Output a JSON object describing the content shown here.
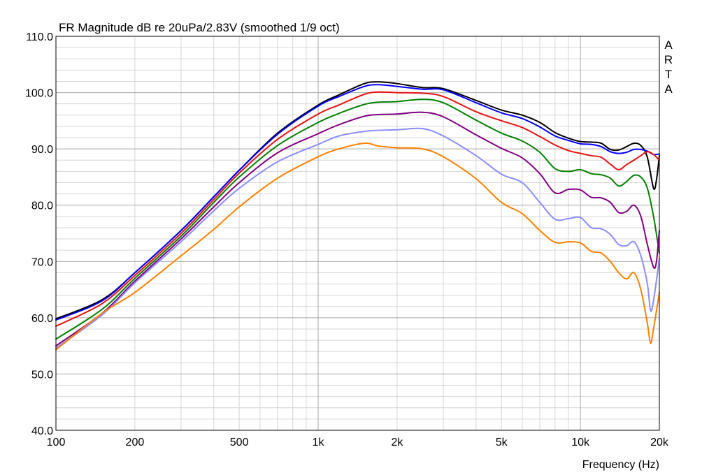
{
  "chart_data": {
    "type": "line",
    "title": "FR Magnitude dB re 20uPa/2.83V (smoothed 1/9 oct)",
    "brand": "ARTA",
    "xlabel": "Frequency (Hz)",
    "ylabel": "",
    "x_scale": "log",
    "xlim": [
      100,
      20000
    ],
    "ylim": [
      40,
      110
    ],
    "grid": true,
    "x_tick_values": [
      100,
      200,
      500,
      1000,
      2000,
      5000,
      10000,
      20000
    ],
    "x_tick_labels": [
      "100",
      "200",
      "500",
      "1k",
      "2k",
      "5k",
      "10k",
      "20k"
    ],
    "y_tick_values": [
      40,
      50,
      60,
      70,
      80,
      90,
      100,
      110
    ],
    "y_tick_labels": [
      "40.0",
      "50.0",
      "60.0",
      "70.0",
      "80.0",
      "90.0",
      "100.0",
      "110.0"
    ],
    "series": [
      {
        "color": "#000000",
        "points": [
          [
            100,
            59.8
          ],
          [
            150,
            63.2
          ],
          [
            200,
            68
          ],
          [
            300,
            75.5
          ],
          [
            400,
            81.5
          ],
          [
            500,
            86.2
          ],
          [
            700,
            92.8
          ],
          [
            1000,
            97.8
          ],
          [
            1200,
            99.6
          ],
          [
            1500,
            101.6
          ],
          [
            1700,
            101.9
          ],
          [
            2000,
            101.6
          ],
          [
            2500,
            100.9
          ],
          [
            3000,
            100.7
          ],
          [
            4000,
            98.6
          ],
          [
            5000,
            96.9
          ],
          [
            6000,
            96
          ],
          [
            7000,
            94.7
          ],
          [
            8000,
            92.9
          ],
          [
            9000,
            91.9
          ],
          [
            10000,
            91.3
          ],
          [
            11000,
            91.2
          ],
          [
            12000,
            91
          ],
          [
            13000,
            89.9
          ],
          [
            14000,
            89.8
          ],
          [
            15000,
            90.4
          ],
          [
            16000,
            91
          ],
          [
            17000,
            90.6
          ],
          [
            18000,
            88.5
          ],
          [
            19000,
            83
          ],
          [
            19500,
            84.5
          ],
          [
            20000,
            88.8
          ]
        ]
      },
      {
        "color": "#0000ff",
        "points": [
          [
            100,
            59.6
          ],
          [
            150,
            63
          ],
          [
            200,
            68
          ],
          [
            300,
            75.5
          ],
          [
            400,
            81.5
          ],
          [
            500,
            86.2
          ],
          [
            700,
            92.6
          ],
          [
            1000,
            97.6
          ],
          [
            1200,
            99.3
          ],
          [
            1500,
            101.1
          ],
          [
            1700,
            101.4
          ],
          [
            2000,
            101.1
          ],
          [
            2500,
            100.6
          ],
          [
            3000,
            100.5
          ],
          [
            4000,
            98.2
          ],
          [
            5000,
            96.4
          ],
          [
            6000,
            95.4
          ],
          [
            7000,
            93.9
          ],
          [
            8000,
            92.3
          ],
          [
            9000,
            91.5
          ],
          [
            10000,
            90.9
          ],
          [
            11000,
            90.8
          ],
          [
            12000,
            90.4
          ],
          [
            13000,
            89.5
          ],
          [
            14000,
            89.2
          ],
          [
            15000,
            89.4
          ],
          [
            16000,
            89.9
          ],
          [
            17000,
            89.9
          ],
          [
            18000,
            89.6
          ],
          [
            19000,
            89
          ],
          [
            20000,
            89.1
          ]
        ]
      },
      {
        "color": "#e81010",
        "points": [
          [
            100,
            58.5
          ],
          [
            150,
            62.5
          ],
          [
            200,
            67.5
          ],
          [
            300,
            75
          ],
          [
            400,
            81
          ],
          [
            500,
            85.7
          ],
          [
            700,
            91.7
          ],
          [
            1000,
            96.2
          ],
          [
            1200,
            97.8
          ],
          [
            1500,
            99.7
          ],
          [
            1700,
            100.1
          ],
          [
            2000,
            100
          ],
          [
            2500,
            99.9
          ],
          [
            3000,
            99.3
          ],
          [
            4000,
            96.6
          ],
          [
            5000,
            95
          ],
          [
            6000,
            93.8
          ],
          [
            7000,
            92.2
          ],
          [
            8000,
            90.7
          ],
          [
            9000,
            89.7
          ],
          [
            10000,
            89.2
          ],
          [
            11000,
            88.8
          ],
          [
            12000,
            88.5
          ],
          [
            13000,
            87.3
          ],
          [
            14000,
            86.3
          ],
          [
            15000,
            87.2
          ],
          [
            16000,
            88
          ],
          [
            17000,
            88.8
          ],
          [
            18000,
            89.5
          ],
          [
            19000,
            89
          ],
          [
            20000,
            88
          ]
        ]
      },
      {
        "color": "#008000",
        "points": [
          [
            100,
            56.2
          ],
          [
            150,
            61.5
          ],
          [
            200,
            67
          ],
          [
            300,
            74.5
          ],
          [
            400,
            80.5
          ],
          [
            500,
            85
          ],
          [
            700,
            90.6
          ],
          [
            1000,
            94.7
          ],
          [
            1200,
            96.3
          ],
          [
            1500,
            97.9
          ],
          [
            1700,
            98.3
          ],
          [
            2000,
            98.4
          ],
          [
            2500,
            98.8
          ],
          [
            3000,
            98.2
          ],
          [
            4000,
            95.1
          ],
          [
            5000,
            92.8
          ],
          [
            6000,
            91.4
          ],
          [
            7000,
            89.4
          ],
          [
            8000,
            86.5
          ],
          [
            9000,
            86
          ],
          [
            10000,
            86.3
          ],
          [
            11000,
            85.6
          ],
          [
            12000,
            85.4
          ],
          [
            13000,
            84.8
          ],
          [
            14000,
            83.4
          ],
          [
            15000,
            84.2
          ],
          [
            16000,
            85.3
          ],
          [
            17000,
            85
          ],
          [
            18000,
            83
          ],
          [
            19000,
            78
          ],
          [
            20000,
            71.5
          ]
        ]
      },
      {
        "color": "#800080",
        "points": [
          [
            100,
            55
          ],
          [
            150,
            60.8
          ],
          [
            200,
            66.5
          ],
          [
            300,
            74
          ],
          [
            400,
            79.7
          ],
          [
            500,
            84
          ],
          [
            700,
            89.3
          ],
          [
            1000,
            92.7
          ],
          [
            1200,
            94.3
          ],
          [
            1500,
            95.8
          ],
          [
            1700,
            96.1
          ],
          [
            2000,
            96.2
          ],
          [
            2500,
            96.5
          ],
          [
            3000,
            95.7
          ],
          [
            4000,
            92.5
          ],
          [
            5000,
            90.1
          ],
          [
            6000,
            88.4
          ],
          [
            7000,
            85.6
          ],
          [
            8000,
            82.2
          ],
          [
            9000,
            82.8
          ],
          [
            10000,
            82.7
          ],
          [
            11000,
            81.4
          ],
          [
            12000,
            81.3
          ],
          [
            13000,
            80.5
          ],
          [
            14000,
            78.7
          ],
          [
            15000,
            78.9
          ],
          [
            16000,
            80
          ],
          [
            17000,
            78
          ],
          [
            18000,
            73
          ],
          [
            19000,
            69
          ],
          [
            19500,
            70
          ],
          [
            20000,
            75.5
          ]
        ]
      },
      {
        "color": "#8c8cff",
        "points": [
          [
            100,
            54.6
          ],
          [
            150,
            60.5
          ],
          [
            200,
            66.2
          ],
          [
            300,
            73.5
          ],
          [
            400,
            79
          ],
          [
            500,
            83
          ],
          [
            700,
            87.7
          ],
          [
            1000,
            90.8
          ],
          [
            1200,
            92.3
          ],
          [
            1500,
            93.1
          ],
          [
            1700,
            93.3
          ],
          [
            2000,
            93.4
          ],
          [
            2500,
            93.6
          ],
          [
            3000,
            92.3
          ],
          [
            4000,
            88.8
          ],
          [
            5000,
            85.5
          ],
          [
            6000,
            84
          ],
          [
            7000,
            80.5
          ],
          [
            8000,
            77.5
          ],
          [
            9000,
            77.6
          ],
          [
            10000,
            77.8
          ],
          [
            11000,
            76
          ],
          [
            12000,
            75.8
          ],
          [
            13000,
            74.8
          ],
          [
            14000,
            73
          ],
          [
            15000,
            72.8
          ],
          [
            16000,
            73.5
          ],
          [
            17000,
            71
          ],
          [
            18000,
            66
          ],
          [
            18500,
            61.3
          ],
          [
            19000,
            63
          ],
          [
            20000,
            70.5
          ]
        ]
      },
      {
        "color": "#ff8000",
        "points": [
          [
            100,
            54.3
          ],
          [
            150,
            60.8
          ],
          [
            200,
            64.5
          ],
          [
            300,
            71
          ],
          [
            400,
            75.7
          ],
          [
            500,
            79.7
          ],
          [
            700,
            84.8
          ],
          [
            1000,
            88.6
          ],
          [
            1200,
            90
          ],
          [
            1500,
            91
          ],
          [
            1700,
            90.5
          ],
          [
            2000,
            90.2
          ],
          [
            2500,
            90
          ],
          [
            3000,
            88.6
          ],
          [
            4000,
            84.7
          ],
          [
            5000,
            80.5
          ],
          [
            6000,
            78.5
          ],
          [
            7000,
            75.5
          ],
          [
            8000,
            73.4
          ],
          [
            9000,
            73.5
          ],
          [
            10000,
            73.3
          ],
          [
            11000,
            71.8
          ],
          [
            12000,
            71.5
          ],
          [
            13000,
            70
          ],
          [
            14000,
            68
          ],
          [
            15000,
            66.9
          ],
          [
            16000,
            68
          ],
          [
            17000,
            65
          ],
          [
            18000,
            59
          ],
          [
            18500,
            55.5
          ],
          [
            19000,
            58
          ],
          [
            20000,
            64.5
          ]
        ]
      }
    ]
  }
}
